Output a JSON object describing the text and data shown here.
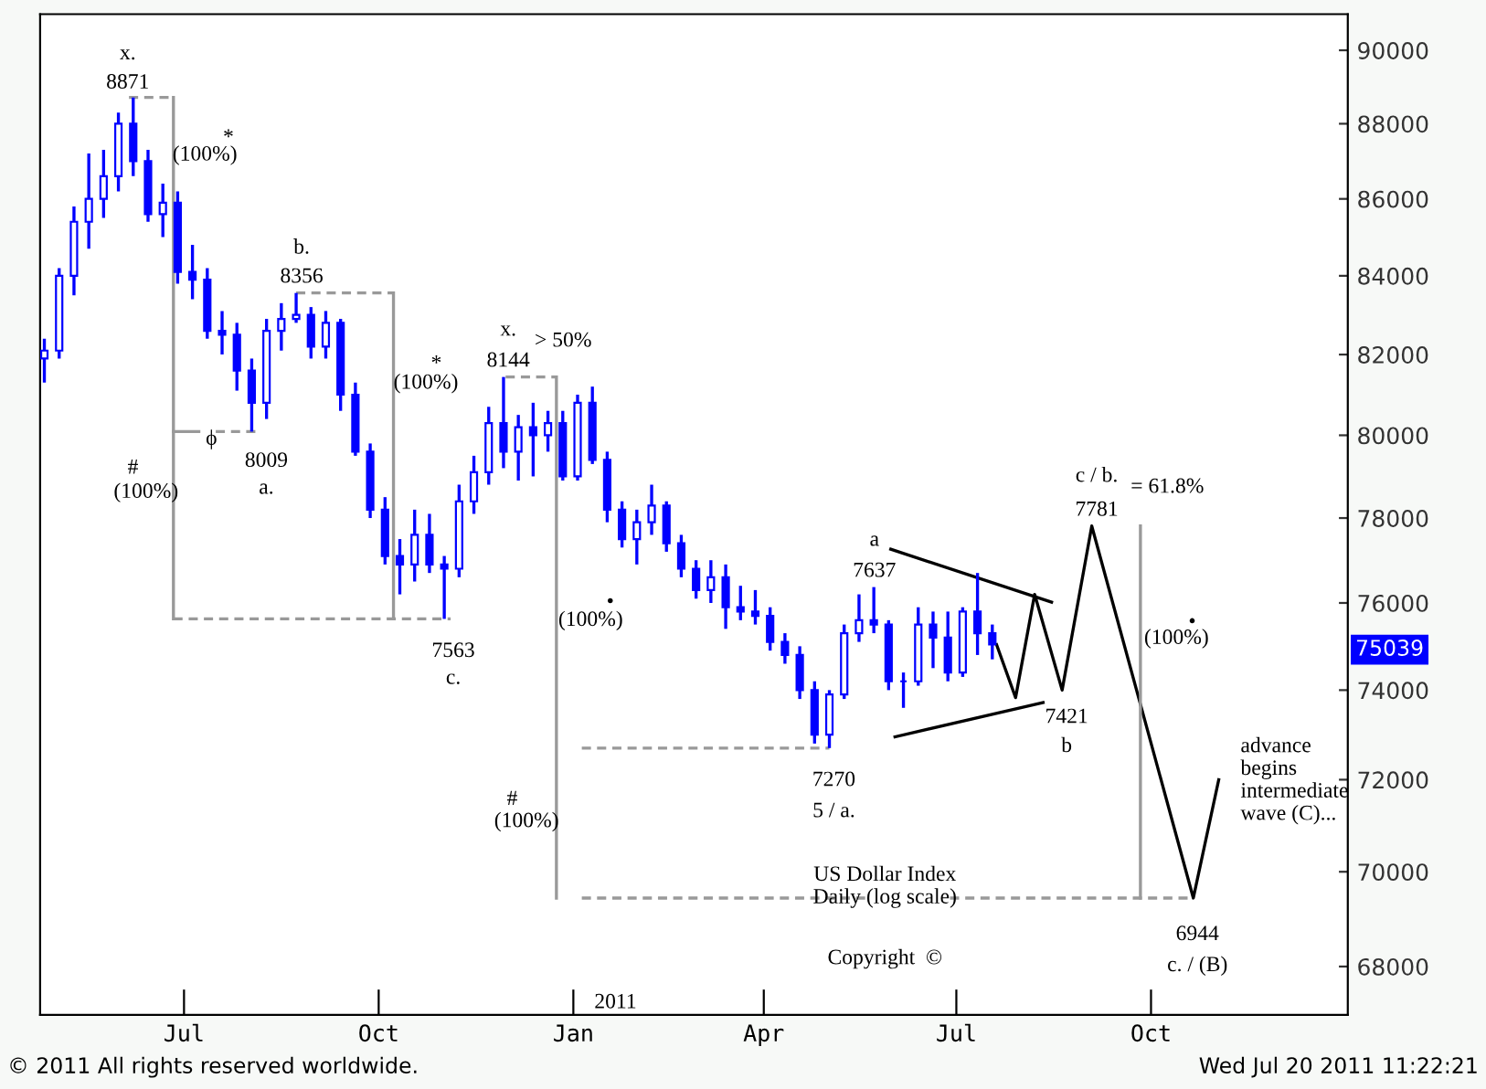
{
  "chart_data": {
    "type": "candlestick",
    "color": "#0000ff",
    "x": [
      "2010-04-26",
      "2010-05-03",
      "2010-05-10",
      "2010-05-17",
      "2010-05-24",
      "2010-05-31",
      "2010-06-07",
      "2010-06-14",
      "2010-06-21",
      "2010-06-28",
      "2010-07-05",
      "2010-07-12",
      "2010-07-19",
      "2010-07-26",
      "2010-08-02",
      "2010-08-09",
      "2010-08-16",
      "2010-08-23",
      "2010-08-30",
      "2010-09-06",
      "2010-09-13",
      "2010-09-20",
      "2010-09-27",
      "2010-10-04",
      "2010-10-11",
      "2010-10-18",
      "2010-10-25",
      "2010-11-01",
      "2010-11-08",
      "2010-11-15",
      "2010-11-22",
      "2010-11-29",
      "2010-12-06",
      "2010-12-13",
      "2010-12-20",
      "2010-12-27",
      "2011-01-03",
      "2011-01-10",
      "2011-01-17",
      "2011-01-24",
      "2011-01-31",
      "2011-02-07",
      "2011-02-14",
      "2011-02-21",
      "2011-02-28",
      "2011-03-07",
      "2011-03-14",
      "2011-03-21",
      "2011-03-28",
      "2011-04-04",
      "2011-04-11",
      "2011-04-18",
      "2011-04-25",
      "2011-05-02",
      "2011-05-09",
      "2011-05-16",
      "2011-05-23",
      "2011-05-30",
      "2011-06-06",
      "2011-06-13",
      "2011-06-20",
      "2011-06-27",
      "2011-07-04",
      "2011-07-11",
      "2011-07-18"
    ],
    "ohlc": [
      [
        81900,
        82400,
        81300,
        82100
      ],
      [
        82100,
        84200,
        81900,
        84000
      ],
      [
        84000,
        85800,
        83500,
        85400
      ],
      [
        85400,
        87200,
        84700,
        86000
      ],
      [
        86000,
        87300,
        85500,
        86600
      ],
      [
        86600,
        88300,
        86200,
        88000
      ],
      [
        88000,
        88710,
        86600,
        87000
      ],
      [
        87000,
        87300,
        85400,
        85600
      ],
      [
        85600,
        86400,
        85000,
        85900
      ],
      [
        85900,
        86200,
        83800,
        84100
      ],
      [
        84100,
        84800,
        83400,
        83900
      ],
      [
        83900,
        84200,
        82400,
        82600
      ],
      [
        82600,
        83100,
        82000,
        82500
      ],
      [
        82500,
        82800,
        81100,
        81600
      ],
      [
        81600,
        81900,
        80090,
        80800
      ],
      [
        80800,
        82900,
        80400,
        82600
      ],
      [
        82600,
        83300,
        82100,
        82900
      ],
      [
        82900,
        83560,
        82800,
        83000
      ],
      [
        83000,
        83200,
        81900,
        82200
      ],
      [
        82200,
        83100,
        81900,
        82800
      ],
      [
        82800,
        82900,
        80600,
        81000
      ],
      [
        81000,
        81300,
        79500,
        79600
      ],
      [
        79600,
        79800,
        78000,
        78200
      ],
      [
        78200,
        78500,
        76900,
        77100
      ],
      [
        77100,
        77500,
        76200,
        76900
      ],
      [
        76900,
        78200,
        76500,
        77600
      ],
      [
        77600,
        78100,
        76700,
        76900
      ],
      [
        76900,
        77100,
        75630,
        76800
      ],
      [
        76800,
        78800,
        76600,
        78400
      ],
      [
        78400,
        79500,
        78100,
        79100
      ],
      [
        79100,
        80700,
        78800,
        80300
      ],
      [
        80300,
        81440,
        79200,
        79600
      ],
      [
        79600,
        80500,
        78900,
        80200
      ],
      [
        80200,
        80800,
        79000,
        80000
      ],
      [
        80000,
        80600,
        79600,
        80300
      ],
      [
        80300,
        80600,
        78900,
        79000
      ],
      [
        79000,
        81000,
        78900,
        80800
      ],
      [
        80800,
        81200,
        79300,
        79400
      ],
      [
        79400,
        79600,
        77900,
        78200
      ],
      [
        78200,
        78400,
        77300,
        77500
      ],
      [
        77500,
        78200,
        76900,
        77900
      ],
      [
        77900,
        78800,
        77600,
        78300
      ],
      [
        78300,
        78400,
        77200,
        77400
      ],
      [
        77400,
        77600,
        76600,
        76800
      ],
      [
        76800,
        77000,
        76100,
        76300
      ],
      [
        76300,
        77000,
        76000,
        76600
      ],
      [
        76600,
        76900,
        75400,
        75900
      ],
      [
        75900,
        76400,
        75600,
        75800
      ],
      [
        75800,
        76300,
        75500,
        75700
      ],
      [
        75700,
        75900,
        74900,
        75100
      ],
      [
        75100,
        75300,
        74600,
        74800
      ],
      [
        74800,
        75000,
        73800,
        74000
      ],
      [
        74000,
        74200,
        72800,
        73000
      ],
      [
        73000,
        74000,
        72700,
        73900
      ],
      [
        73900,
        75500,
        73800,
        75300
      ],
      [
        75300,
        76200,
        75100,
        75600
      ],
      [
        75600,
        76370,
        75300,
        75500
      ],
      [
        75500,
        75600,
        74000,
        74200
      ],
      [
        74200,
        74400,
        73600,
        74200
      ],
      [
        74200,
        75900,
        74100,
        75500
      ],
      [
        75500,
        75800,
        74500,
        75200
      ],
      [
        75200,
        75800,
        74200,
        74400
      ],
      [
        74400,
        75900,
        74300,
        75800
      ],
      [
        75800,
        76700,
        74800,
        75300
      ],
      [
        75300,
        75500,
        74700,
        75039
      ]
    ],
    "series": [
      {
        "type": "line",
        "color": "#000000",
        "line_style": "solid",
        "x": [
          "2011-07-20",
          "2011-07-29",
          "2011-08-07",
          "2011-08-20",
          "2011-09-03",
          "2011-10-21",
          "2011-11-02"
        ],
        "values": [
          75039,
          73830,
          76200,
          74000,
          77810,
          69440,
          72000
        ]
      },
      {
        "type": "line",
        "color": "#000000",
        "line_style": "solid",
        "x": [
          "2011-05-31",
          "2011-08-15"
        ],
        "values": [
          77260,
          76020
        ]
      },
      {
        "type": "line",
        "color": "#000000",
        "line_style": "solid",
        "x": [
          "2011-06-02",
          "2011-08-11"
        ],
        "values": [
          72950,
          73720
        ]
      },
      {
        "type": "line",
        "color": "#999999",
        "line_style": "solid",
        "x": [
          "2010-06-26",
          "2010-06-26"
        ],
        "values": [
          88710,
          75630
        ]
      },
      {
        "type": "line",
        "color": "#999999",
        "line_style": "solid",
        "x": [
          "2010-10-08",
          "2010-10-08"
        ],
        "values": [
          83560,
          75630
        ]
      },
      {
        "type": "line",
        "color": "#999999",
        "line_style": "solid",
        "x": [
          "2010-12-24",
          "2010-12-24"
        ],
        "values": [
          81440,
          69440
        ]
      },
      {
        "type": "line",
        "color": "#999999",
        "line_style": "solid",
        "x": [
          "2011-09-26",
          "2011-09-26"
        ],
        "values": [
          77810,
          69440
        ]
      },
      {
        "type": "line",
        "color": "#999999",
        "line_style": "solid",
        "x": [
          "2010-06-26",
          "2010-07-08"
        ],
        "values": [
          80090,
          80090
        ]
      },
      {
        "type": "line",
        "color": "#999999",
        "line_style": "dashed",
        "x": [
          "2010-06-05",
          "2010-06-26"
        ],
        "values": [
          88710,
          88710
        ]
      },
      {
        "type": "line",
        "color": "#999999",
        "line_style": "dashed",
        "x": [
          "2010-06-26",
          "2010-11-04"
        ],
        "values": [
          75630,
          75630
        ]
      },
      {
        "type": "line",
        "color": "#999999",
        "line_style": "dashed",
        "x": [
          "2010-07-16",
          "2010-08-06"
        ],
        "values": [
          80090,
          80090
        ]
      },
      {
        "type": "line",
        "color": "#999999",
        "line_style": "dashed",
        "x": [
          "2010-08-23",
          "2010-10-08"
        ],
        "values": [
          83560,
          83560
        ]
      },
      {
        "type": "line",
        "color": "#999999",
        "line_style": "dashed",
        "x": [
          "2010-11-30",
          "2010-12-24"
        ],
        "values": [
          81440,
          81440
        ]
      },
      {
        "type": "line",
        "color": "#999999",
        "line_style": "dashed",
        "x": [
          "2011-01-05",
          "2011-05-02"
        ],
        "values": [
          72700,
          72700
        ]
      },
      {
        "type": "line",
        "color": "#999999",
        "line_style": "dashed",
        "x": [
          "2011-01-05",
          "2011-05-20"
        ],
        "values": [
          69440,
          69440
        ]
      },
      {
        "type": "line",
        "color": "#999999",
        "line_style": "dashed",
        "x": [
          "2011-06-28",
          "2011-10-21"
        ],
        "values": [
          69440,
          69440
        ]
      }
    ],
    "log": "y",
    "xlim": [
      "2010-04-24",
      "2012-01-02"
    ],
    "xticks": [
      {
        "value": "2010-07-01",
        "label": "Jul"
      },
      {
        "value": "2010-10-01",
        "label": "Oct"
      },
      {
        "value": "2011-01-01",
        "label": "Jan"
      },
      {
        "value": "2011-04-01",
        "label": "Apr"
      },
      {
        "value": "2011-07-01",
        "label": "Jul"
      },
      {
        "value": "2011-10-01",
        "label": "Oct"
      }
    ],
    "ylim": [
      67000,
      91000
    ],
    "yticks": [
      68000,
      70000,
      72000,
      74000,
      76000,
      78000,
      80000,
      82000,
      84000,
      86000,
      88000,
      90000
    ],
    "marker": "none",
    "annotations": [
      "x.",
      "8871",
      "*",
      "(100%)",
      "b.",
      "8356",
      "ϕ",
      "8009",
      "a.",
      "#",
      "(100%)",
      "*",
      "(100%)",
      "x.",
      "> 50%",
      "8144",
      "7563",
      "c.",
      "(100%)",
      "•",
      "#",
      "(100%)",
      "a",
      "7637",
      "7270",
      "5 / a.",
      "7421",
      "b",
      "c / b.",
      "7781",
      "= 61.8%",
      "(100%)",
      "•",
      "6944",
      "c. / (B)",
      "advance\nbegins\nintermediate\nwave (C)...",
      "US Dollar Index\nDaily (log scale)",
      "Copyright  ©",
      "2011",
      "75039",
      "© 2011 All rights reserved worldwide.",
      "Wed Jul 20 2011 11:22:21"
    ]
  }
}
